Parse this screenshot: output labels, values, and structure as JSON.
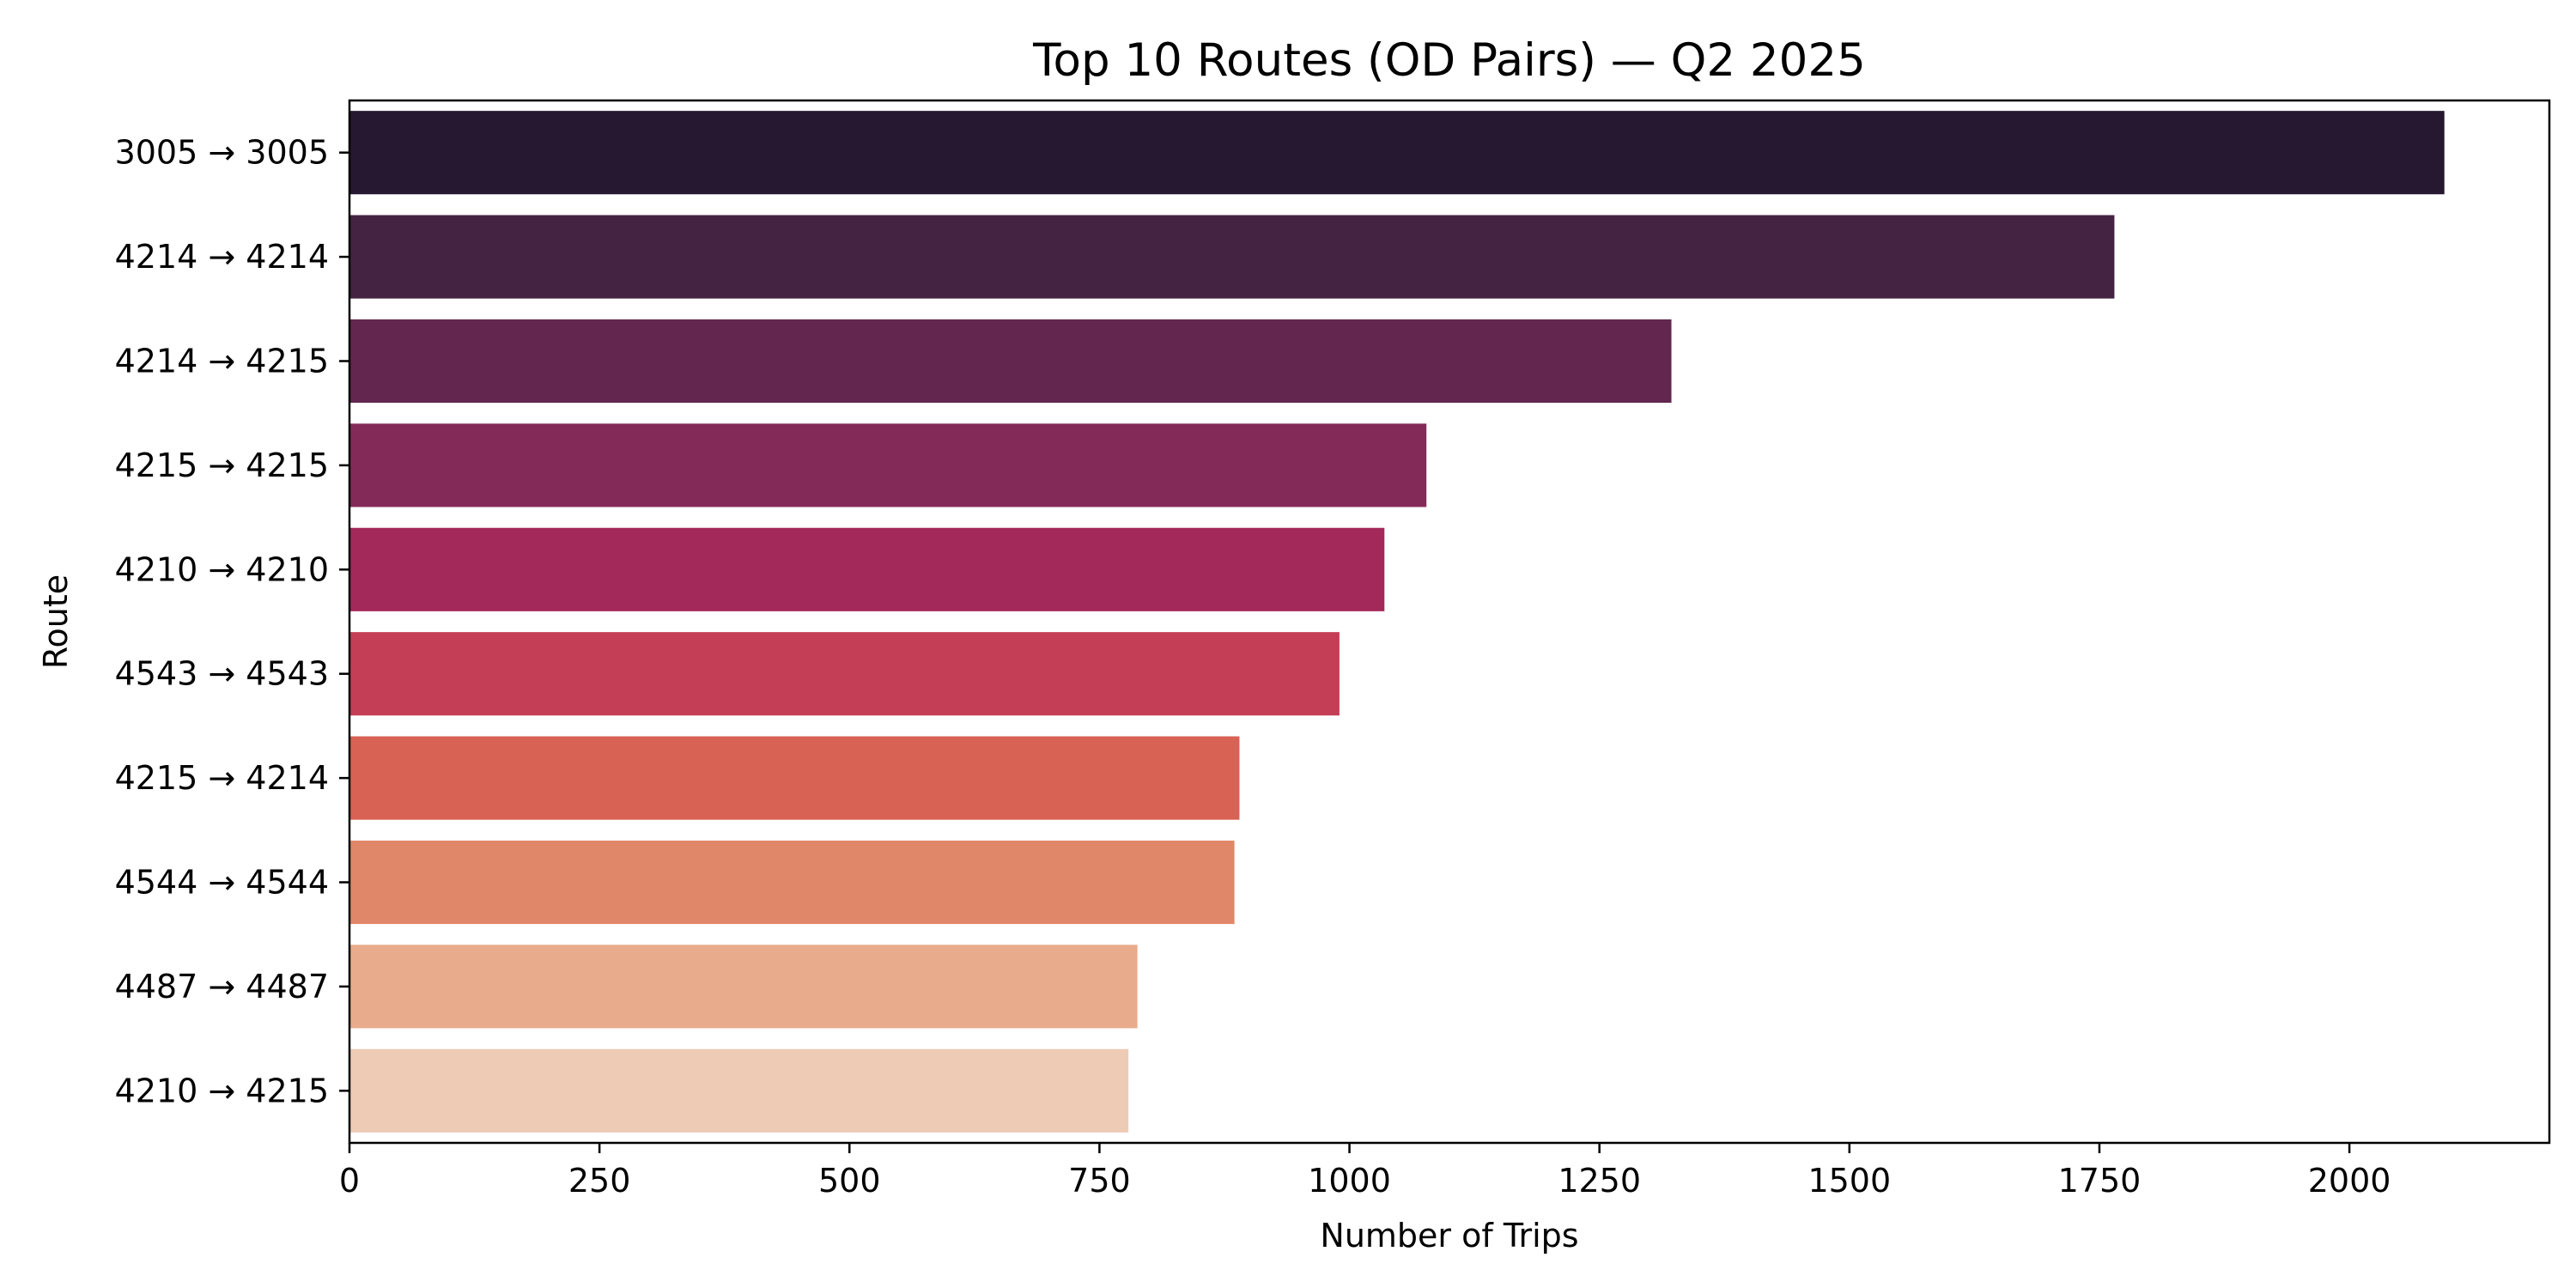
{
  "chart_data": {
    "type": "bar",
    "orientation": "horizontal",
    "title": "Top 10 Routes (OD Pairs) — Q2 2025",
    "xlabel": "Number of Trips",
    "ylabel": "Route",
    "xlim": [
      0,
      2200
    ],
    "xticks": [
      0,
      250,
      500,
      750,
      1000,
      1250,
      1500,
      1750,
      2000
    ],
    "categories": [
      "3005 → 3005",
      "4214 → 4214",
      "4214 → 4215",
      "4215 → 4215",
      "4210 → 4210",
      "4543 → 4543",
      "4215 → 4214",
      "4544 → 4544",
      "4487 → 4487",
      "4210 → 4215"
    ],
    "values": [
      2095,
      1765,
      1322,
      1077,
      1035,
      990,
      890,
      885,
      788,
      779
    ],
    "colors": [
      "#251830",
      "#432242",
      "#62264f",
      "#842a59",
      "#a3295a",
      "#c43e56",
      "#d86254",
      "#e18769",
      "#e8ab8b",
      "#eecbb5"
    ],
    "grid": false,
    "legend": "none"
  }
}
